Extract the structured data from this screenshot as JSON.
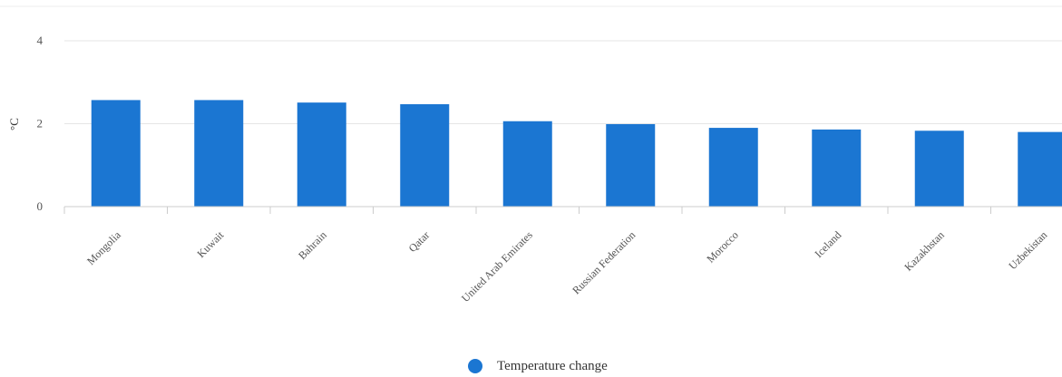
{
  "chart_data": {
    "type": "bar",
    "categories": [
      "Mongolia",
      "Kuwait",
      "Bahrain",
      "Qatar",
      "United Arab Emirates",
      "Russian Federation",
      "Morocco",
      "Iceland",
      "Kazakhstan",
      "Uzbekistan"
    ],
    "series": [
      {
        "name": "Temperature change",
        "values": [
          2.57,
          2.57,
          2.51,
          2.47,
          2.06,
          1.99,
          1.9,
          1.86,
          1.83,
          1.8
        ]
      }
    ],
    "title": "",
    "xlabel": "",
    "ylabel": "°C",
    "ylim": [
      0,
      4
    ],
    "yticks": [
      "0",
      "2",
      "4"
    ],
    "grid": true,
    "legend_position": "bottom"
  },
  "colors": {
    "bar": "#1b76d2",
    "grid": "#e6e6e6",
    "axis": "#cccccc"
  }
}
